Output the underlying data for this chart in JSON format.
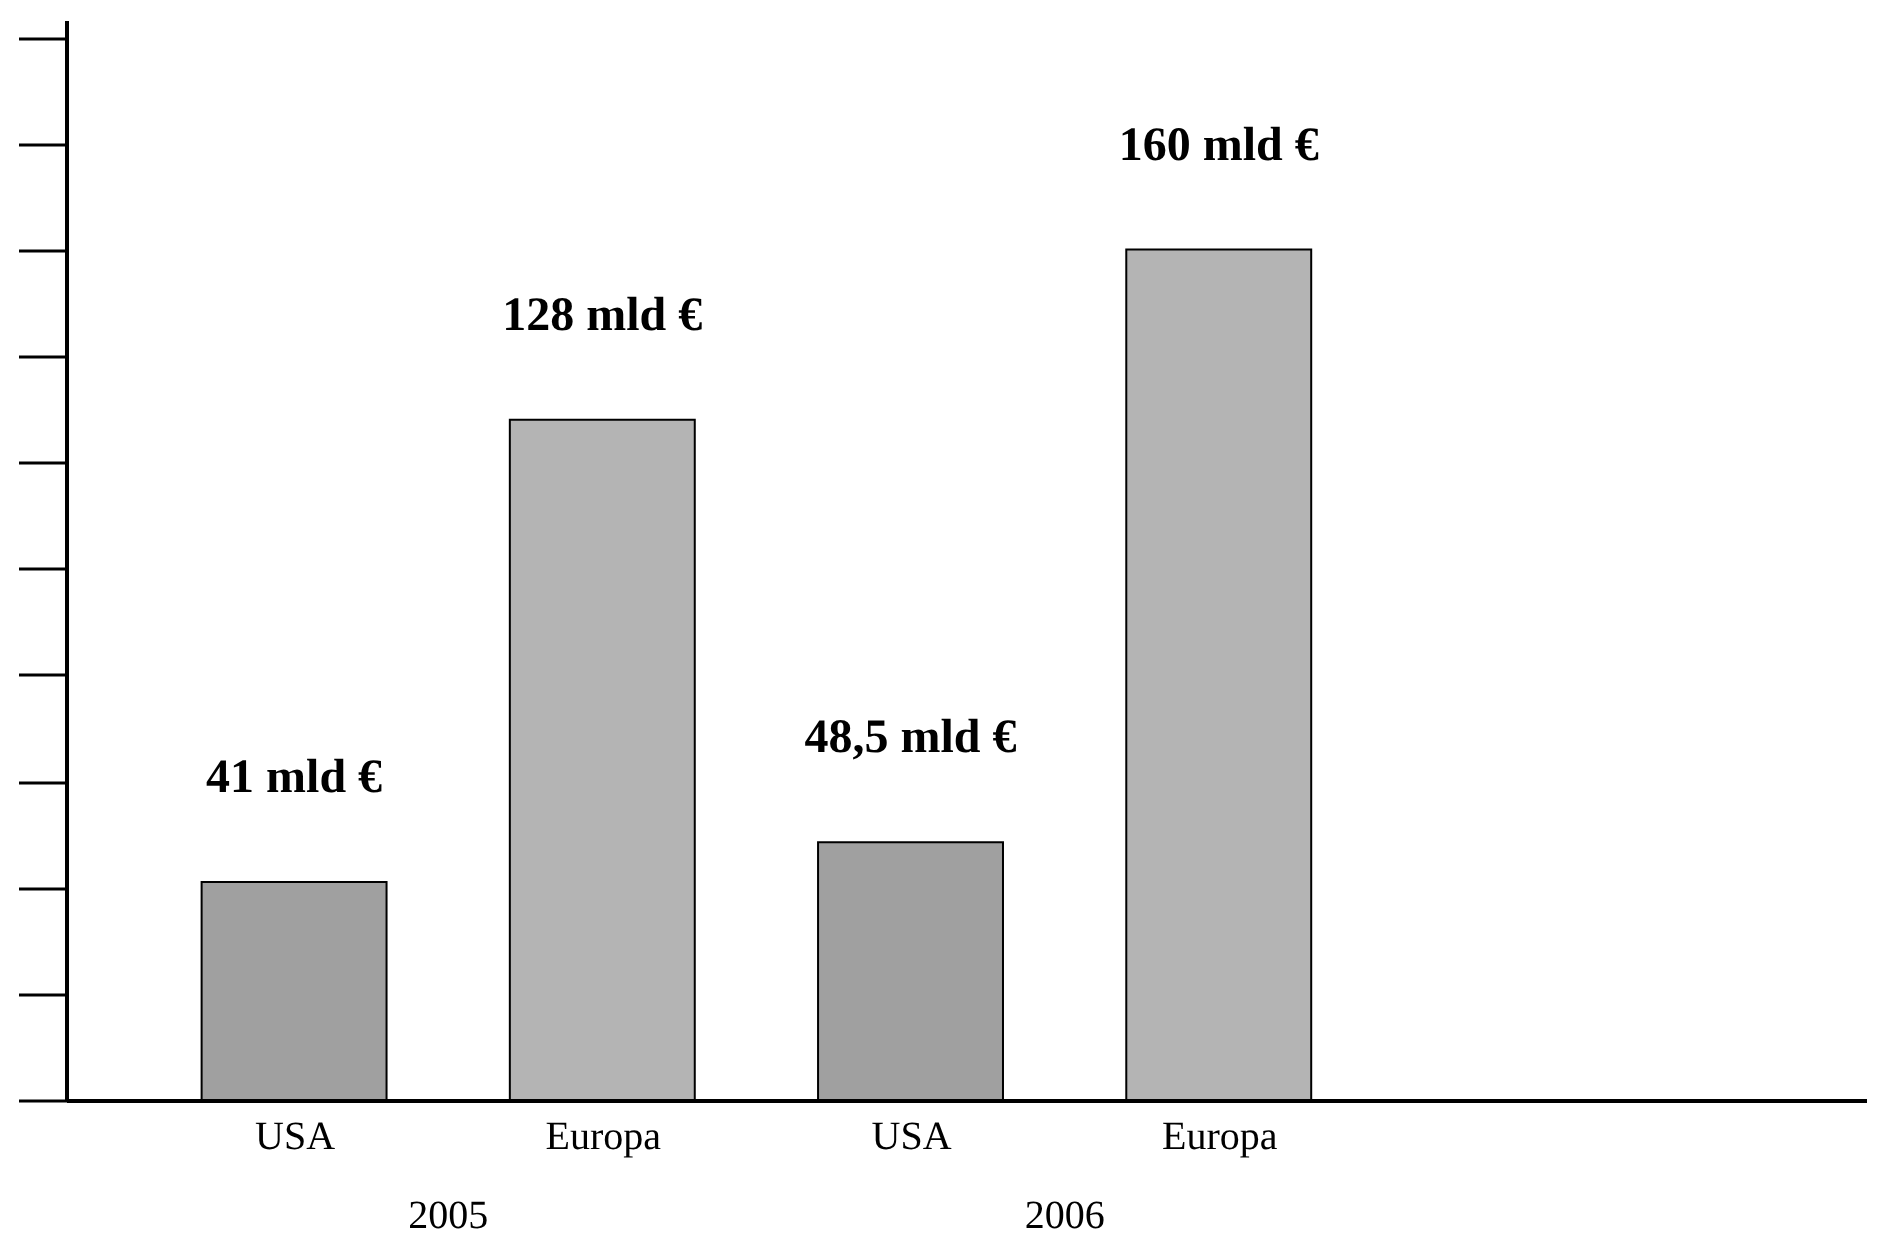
{
  "chart_data": {
    "type": "bar",
    "categories": [
      "USA",
      "Europa",
      "USA",
      "Europa"
    ],
    "values": [
      41,
      128,
      48.5,
      160
    ],
    "colors": [
      "#a0a0a0",
      "#b4b4b4",
      "#a0a0a0",
      "#b4b4b4"
    ],
    "value_labels": [
      "41 mld €",
      "128 mld €",
      "48,5 mld €",
      "160 mld €"
    ],
    "annotations": [
      "2005",
      "2006"
    ],
    "grid": false
  }
}
